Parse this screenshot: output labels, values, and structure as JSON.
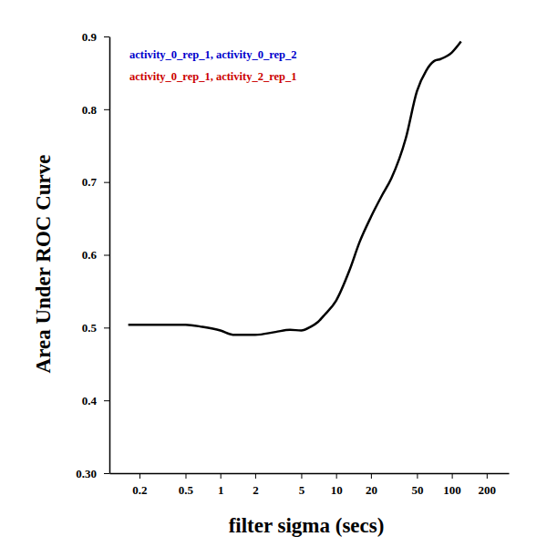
{
  "chart_data": {
    "type": "line",
    "x_label": "filter sigma (secs)",
    "y_label": "Area Under ROC Curve",
    "annotations": [
      {
        "text": "activity_0_rep_1, activity_0_rep_2",
        "color": "#0000cc"
      },
      {
        "text": "activity_0_rep_1, activity_2_rep_1",
        "color": "#cc0000"
      }
    ],
    "log": "x",
    "xlim": [
      0.11,
      310
    ],
    "xticks": [
      0.2,
      0.5,
      1,
      2,
      5,
      10,
      20,
      50,
      100,
      200
    ],
    "ylim": [
      0.3,
      0.9
    ],
    "yticks": [
      {
        "value": 0.3,
        "label": "0.30"
      },
      0.4,
      0.5,
      0.6,
      0.7,
      0.8,
      0.9
    ],
    "x": [
      0.16,
      0.3,
      0.5,
      0.7,
      1,
      1.3,
      2,
      3,
      4,
      5,
      6,
      7,
      8,
      10,
      13,
      16,
      20,
      25,
      30,
      40,
      50,
      60,
      70,
      80,
      100,
      120
    ],
    "series": [
      {
        "color": "#000000",
        "values": [
          0.504,
          0.504,
          0.504,
          0.501,
          0.496,
          0.49,
          0.49,
          0.494,
          0.497,
          0.496,
          0.501,
          0.508,
          0.518,
          0.537,
          0.578,
          0.618,
          0.652,
          0.682,
          0.705,
          0.76,
          0.825,
          0.853,
          0.866,
          0.869,
          0.878,
          0.893
        ]
      }
    ]
  }
}
